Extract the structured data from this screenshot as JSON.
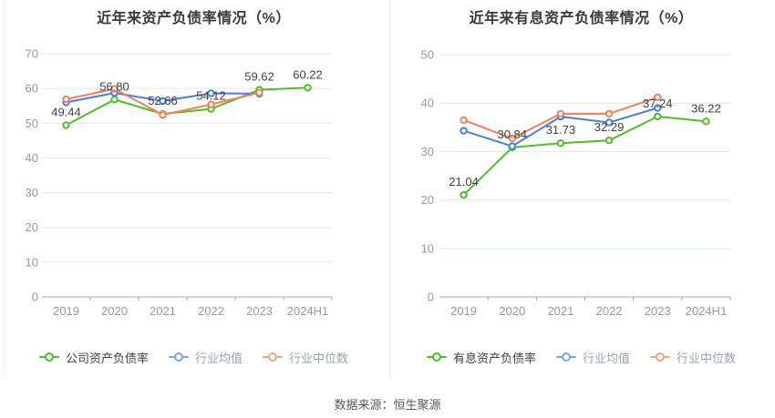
{
  "page": {
    "source_note": "数据来源：恒生聚源"
  },
  "chart_data": [
    {
      "type": "line",
      "title": "近年来资产负债率情况（%）",
      "categories": [
        "2019",
        "2020",
        "2021",
        "2022",
        "2023",
        "2024H1"
      ],
      "ylim": [
        0,
        70
      ],
      "yticks": [
        0,
        10,
        20,
        30,
        40,
        50,
        60,
        70
      ],
      "grid": true,
      "legend_position": "bottom",
      "series": [
        {
          "name": "公司资产负债率",
          "color": "#4dbe23",
          "values": [
            49.44,
            56.8,
            52.66,
            54.12,
            59.62,
            60.22
          ],
          "labels": [
            "49.44",
            "56.80",
            "52.66",
            "54.12",
            "59.62",
            "60.22"
          ]
        },
        {
          "name": "行业均值",
          "color": "#4a7de0",
          "values": [
            56.0,
            58.7,
            56.4,
            58.6,
            58.5,
            null
          ]
        },
        {
          "name": "行业中位数",
          "color": "#f87e54",
          "values": [
            56.9,
            59.9,
            52.4,
            55.4,
            58.8,
            null
          ]
        }
      ]
    },
    {
      "type": "line",
      "title": "近年来有息资产负债率情况（%）",
      "categories": [
        "2019",
        "2020",
        "2021",
        "2022",
        "2023",
        "2024H1"
      ],
      "ylim": [
        0,
        50
      ],
      "yticks": [
        0,
        10,
        20,
        30,
        40,
        50
      ],
      "grid": true,
      "legend_position": "bottom",
      "series": [
        {
          "name": "有息资产负债率",
          "color": "#4dbe23",
          "values": [
            21.04,
            30.84,
            31.73,
            32.29,
            37.24,
            36.22
          ],
          "labels": [
            "21.04",
            "30.84",
            "31.73",
            "32.29",
            "37.24",
            "36.22"
          ]
        },
        {
          "name": "行业均值",
          "color": "#4a7de0",
          "values": [
            34.3,
            31.1,
            37.2,
            36.0,
            39.0,
            null
          ]
        },
        {
          "name": "行业中位数",
          "color": "#f87e54",
          "values": [
            36.5,
            32.7,
            37.8,
            37.8,
            41.2,
            null
          ]
        }
      ]
    }
  ]
}
